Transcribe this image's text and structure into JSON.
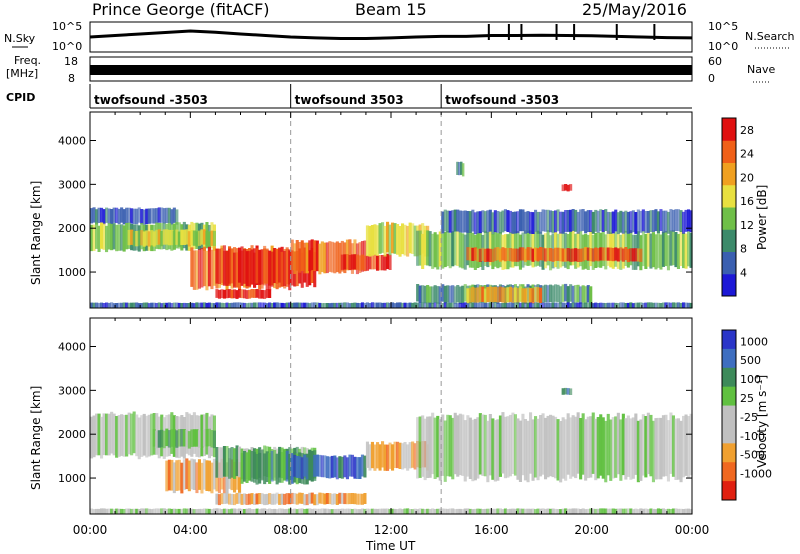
{
  "header": {
    "station": "Prince George (fitACF)",
    "beam": "Beam 15",
    "date": "25/May/2016"
  },
  "side_labels": {
    "nsky": "N.Sky",
    "freq": "Freq.",
    "freq_unit": "[MHz]",
    "cpid": "CPID",
    "nsearch": "N.Search",
    "nave": "Nave",
    "nsky_ticks": [
      "10^5",
      "10^0"
    ],
    "nsearch_ticks": [
      "10^5",
      "10^0"
    ],
    "freq_ticks": [
      "18",
      "8"
    ],
    "nave_ticks": [
      "60",
      "0"
    ]
  },
  "cpid_segments": [
    {
      "label": "twofsound -3503",
      "start_hour": 0
    },
    {
      "label": "twofsound 3503",
      "start_hour": 8
    },
    {
      "label": "twofsound -3503",
      "start_hour": 14
    }
  ],
  "colors": {
    "power": [
      "#1c18d6",
      "#3a5fb0",
      "#3c8a6a",
      "#6fbf48",
      "#e8e040",
      "#f0a020",
      "#f06018",
      "#e01010"
    ],
    "velocity": [
      "#2a35c8",
      "#3e6ec0",
      "#3d8a5a",
      "#60c040",
      "#c0c0c0",
      "#c0c0c0",
      "#f0a030",
      "#f06820",
      "#e02010"
    ]
  },
  "chart_data": [
    {
      "type": "line",
      "name": "noise-panel",
      "left_label": "N.Sky",
      "right_label": "N.Search",
      "x_hours": [
        0,
        1,
        2,
        3,
        4,
        5,
        6,
        7,
        8,
        9,
        10,
        11,
        12,
        13,
        14,
        15,
        16,
        17,
        18,
        19,
        20,
        21,
        22,
        23,
        24
      ],
      "values": [
        0.5,
        0.55,
        0.6,
        0.65,
        0.7,
        0.66,
        0.6,
        0.55,
        0.5,
        0.47,
        0.45,
        0.45,
        0.47,
        0.5,
        0.52,
        0.52,
        0.55,
        0.55,
        0.56,
        0.55,
        0.54,
        0.52,
        0.5,
        0.48,
        0.47
      ]
    },
    {
      "type": "line",
      "name": "frequency-panel",
      "left_label": "Freq. [MHz]",
      "right_label": "Nave",
      "left_ticks": [
        "18",
        "8"
      ],
      "right_ticks": [
        "60",
        "0"
      ]
    },
    {
      "type": "heatmap",
      "name": "power",
      "ylabel": "Slant Range [km]",
      "y_ticks": [
        1000,
        2000,
        3000,
        4000
      ],
      "ylim": [
        180,
        4650
      ],
      "xlim_hours": [
        0,
        24
      ],
      "colorbar_label": "Power [dB]",
      "colorbar_ticks": [
        4,
        8,
        12,
        16,
        20,
        24,
        28
      ],
      "colorbar_range": [
        0,
        30
      ],
      "bands": [
        {
          "t0": 0,
          "t1": 3.5,
          "r0": 2100,
          "r1": 2450,
          "level": 1
        },
        {
          "t0": 0,
          "t1": 5,
          "r0": 1500,
          "r1": 2100,
          "level": 3
        },
        {
          "t0": 1.5,
          "t1": 5,
          "r0": 1600,
          "r1": 1950,
          "level": 4
        },
        {
          "t0": 4,
          "t1": 8,
          "r0": 650,
          "r1": 1550,
          "level": 6
        },
        {
          "t0": 5,
          "t1": 9,
          "r0": 700,
          "r1": 1500,
          "level": 7
        },
        {
          "t0": 5,
          "t1": 7.2,
          "r0": 400,
          "r1": 600,
          "level": 7
        },
        {
          "t0": 8,
          "t1": 11,
          "r0": 1000,
          "r1": 1700,
          "level": 6
        },
        {
          "t0": 10,
          "t1": 12,
          "r0": 1050,
          "r1": 1400,
          "level": 7
        },
        {
          "t0": 11,
          "t1": 13.5,
          "r0": 1400,
          "r1": 2100,
          "level": 4
        },
        {
          "t0": 13,
          "t1": 24,
          "r0": 1100,
          "r1": 1900,
          "level": 3
        },
        {
          "t0": 15,
          "t1": 22,
          "r0": 1250,
          "r1": 1550,
          "level": 6
        },
        {
          "t0": 14,
          "t1": 24,
          "r0": 1900,
          "r1": 2400,
          "level": 1
        },
        {
          "t0": 13,
          "t1": 20,
          "r0": 300,
          "r1": 700,
          "level": 2
        },
        {
          "t0": 15,
          "t1": 18,
          "r0": 300,
          "r1": 650,
          "level": 5
        },
        {
          "t0": 14.6,
          "t1": 14.9,
          "r0": 3200,
          "r1": 3500,
          "level": 2
        },
        {
          "t0": 18.8,
          "t1": 19.2,
          "r0": 2850,
          "r1": 3000,
          "level": 7
        },
        {
          "t0": 0,
          "t1": 24,
          "r0": 180,
          "r1": 300,
          "level": 1
        }
      ]
    },
    {
      "type": "heatmap",
      "name": "velocity",
      "ylabel": "Slant Range [km]",
      "xlabel": "Time UT",
      "y_ticks": [
        1000,
        2000,
        3000,
        4000
      ],
      "ylim": [
        180,
        4650
      ],
      "x_tick_labels": [
        "00:00",
        "04:00",
        "08:00",
        "12:00",
        "16:00",
        "20:00",
        "00:00"
      ],
      "x_tick_hours": [
        0,
        4,
        8,
        12,
        16,
        20,
        24
      ],
      "colorbar_label": "Velocity [m s⁻¹]",
      "colorbar_ticks": [
        "1000",
        "500",
        "100",
        "25",
        "-25",
        "-100",
        "-500",
        "-1000"
      ],
      "bands": [
        {
          "t0": 0,
          "t1": 5,
          "r0": 1500,
          "r1": 2450,
          "level": 4
        },
        {
          "t0": 2.5,
          "t1": 5,
          "r0": 1700,
          "r1": 2100,
          "level": 3
        },
        {
          "t0": 3,
          "t1": 6,
          "r0": 700,
          "r1": 1400,
          "level": 6
        },
        {
          "t0": 5,
          "t1": 9,
          "r0": 1000,
          "r1": 1700,
          "level": 3
        },
        {
          "t0": 6,
          "t1": 9,
          "r0": 900,
          "r1": 1600,
          "level": 2
        },
        {
          "t0": 8,
          "t1": 11,
          "r0": 1000,
          "r1": 1500,
          "level": 1
        },
        {
          "t0": 11,
          "t1": 13.5,
          "r0": 1200,
          "r1": 1800,
          "level": 6
        },
        {
          "t0": 13,
          "t1": 24,
          "r0": 1000,
          "r1": 2400,
          "level": 4
        },
        {
          "t0": 18.8,
          "t1": 19.2,
          "r0": 2900,
          "r1": 3050,
          "level": 2
        },
        {
          "t0": 5,
          "t1": 11,
          "r0": 400,
          "r1": 650,
          "level": 6
        },
        {
          "t0": 0,
          "t1": 24,
          "r0": 180,
          "r1": 300,
          "level": 4
        }
      ]
    }
  ]
}
